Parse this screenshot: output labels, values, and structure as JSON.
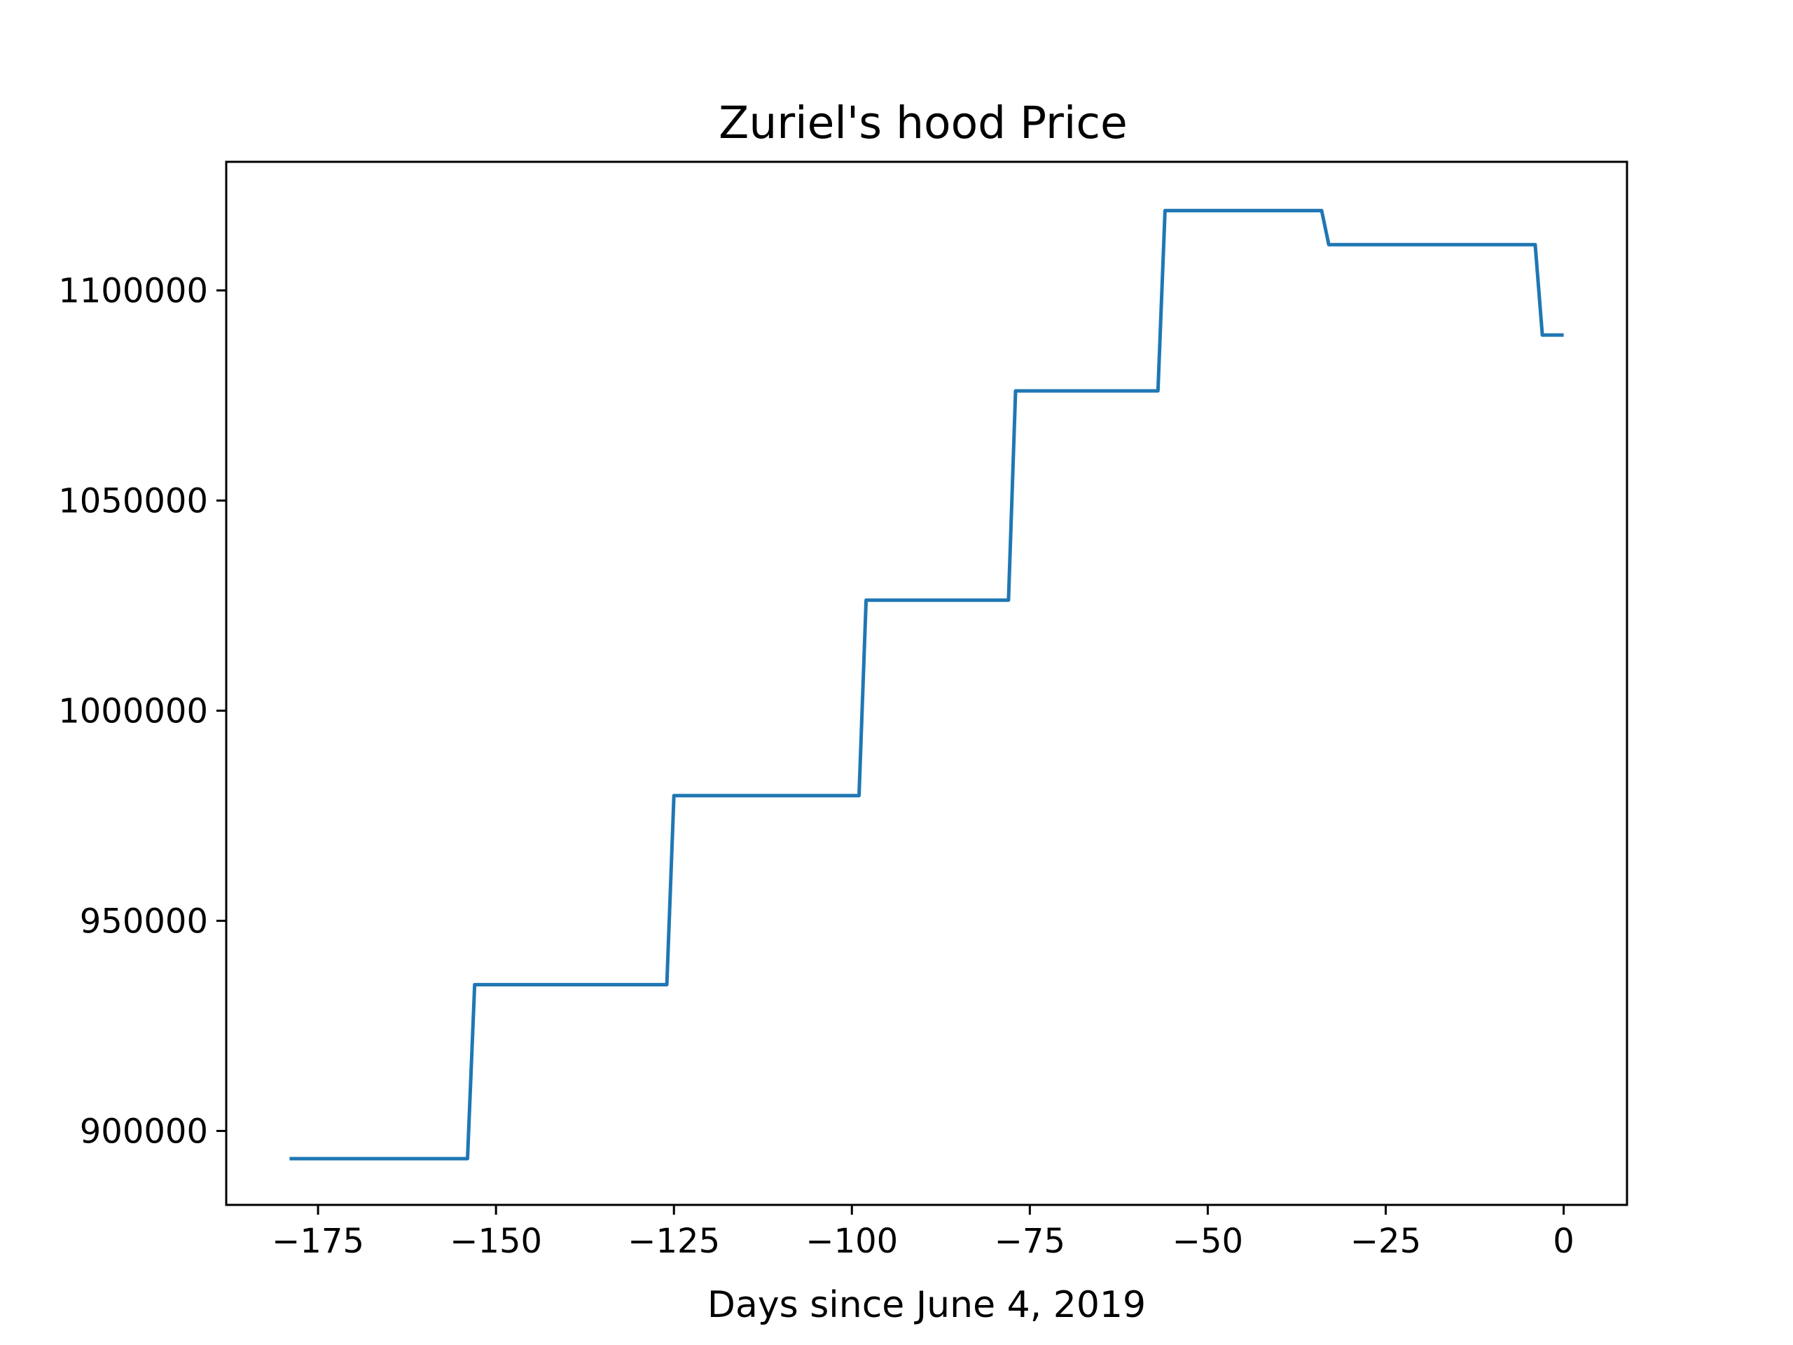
{
  "chart_data": {
    "type": "line",
    "title": "Zuriel's hood Price",
    "xlabel": "Days since June 4, 2019",
    "ylabel": "",
    "xlim": [
      -187.9,
      8.9
    ],
    "ylim": [
      882400,
      1130600
    ],
    "grid": false,
    "x_ticks": [
      -175,
      -150,
      -125,
      -100,
      -75,
      -50,
      -25,
      0
    ],
    "x_tick_labels": [
      "−175",
      "−150",
      "−125",
      "−100",
      "−75",
      "−50",
      "−25",
      "0"
    ],
    "y_ticks": [
      900000,
      950000,
      1000000,
      1050000,
      1100000
    ],
    "y_tick_labels": [
      "900000",
      "950000",
      "1000000",
      "1050000",
      "1100000"
    ],
    "series": [
      {
        "color": "#1f77b4",
        "x": [
          -179,
          -154,
          -153,
          -126,
          -125,
          -99,
          -98,
          -78,
          -77,
          -57,
          -56,
          -34,
          -33,
          -4,
          -3,
          0
        ],
        "y": [
          893400,
          893400,
          934800,
          934800,
          979800,
          979800,
          1026300,
          1026300,
          1076100,
          1076100,
          1119000,
          1119000,
          1110900,
          1110900,
          1089400,
          1089400
        ]
      }
    ]
  }
}
